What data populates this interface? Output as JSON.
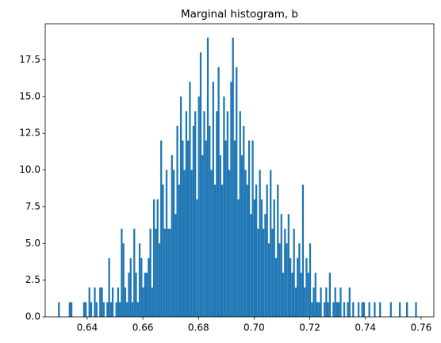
{
  "chart_data": {
    "type": "histogram",
    "title": "Marginal histogram, b",
    "color": "#1f77b4",
    "bins": [
      0.6295,
      0.630145,
      0.63079,
      0.631435,
      0.63208,
      0.632725,
      0.63337,
      0.634015,
      0.63466,
      0.635305,
      0.63595,
      0.636595,
      0.63724,
      0.637885,
      0.63853,
      0.639175,
      0.63982,
      0.640465,
      0.64111,
      0.641755,
      0.6424,
      0.643045,
      0.64369,
      0.644335,
      0.64498,
      0.645625,
      0.64627,
      0.646915,
      0.64756,
      0.648205,
      0.64885,
      0.649495,
      0.65014,
      0.650785,
      0.65143,
      0.652075,
      0.65272,
      0.653365,
      0.65401,
      0.654655,
      0.6553,
      0.655945,
      0.65659,
      0.657235,
      0.65788,
      0.658525,
      0.65917,
      0.659815,
      0.66046,
      0.661105,
      0.66175,
      0.662395,
      0.66304,
      0.663685,
      0.66433,
      0.664975,
      0.66562,
      0.666265,
      0.66691,
      0.667555,
      0.6682,
      0.668845,
      0.66949,
      0.670135,
      0.67078,
      0.671425,
      0.67207,
      0.672715,
      0.67336,
      0.674005,
      0.67465,
      0.675295,
      0.67594,
      0.676585,
      0.67723,
      0.677875,
      0.67852,
      0.679165,
      0.67981,
      0.680455,
      0.6811,
      0.681745,
      0.68239,
      0.683035,
      0.68368,
      0.684325,
      0.68497,
      0.685615,
      0.68626,
      0.686905,
      0.68755,
      0.688195,
      0.68884,
      0.689485,
      0.69013,
      0.690775,
      0.69142,
      0.692065,
      0.69271,
      0.693355,
      0.694,
      0.694645,
      0.69529,
      0.695935,
      0.69658,
      0.697225,
      0.69787,
      0.698515,
      0.69916,
      0.699805,
      0.70045,
      0.701095,
      0.70174,
      0.702385,
      0.70303,
      0.703675,
      0.70432,
      0.704965,
      0.70561,
      0.706255,
      0.7069,
      0.707545,
      0.70819,
      0.708835,
      0.70948,
      0.710125,
      0.71077,
      0.711415,
      0.71206,
      0.712705,
      0.71335,
      0.713995,
      0.71464,
      0.715285,
      0.71593,
      0.716575,
      0.71722,
      0.717865,
      0.71851,
      0.719155,
      0.7198,
      0.720445,
      0.72109,
      0.721735,
      0.72238,
      0.723025,
      0.72367,
      0.724315,
      0.72496,
      0.725605,
      0.72625,
      0.726895,
      0.72754,
      0.728185,
      0.72883,
      0.729475,
      0.73012,
      0.730765,
      0.73141,
      0.732055,
      0.7327,
      0.733345,
      0.73399,
      0.734635,
      0.73528,
      0.735925,
      0.73657,
      0.737215,
      0.73786,
      0.738505,
      0.73915,
      0.739795,
      0.74044,
      0.741085,
      0.74173,
      0.742375,
      0.74302,
      0.743665,
      0.74431,
      0.744955,
      0.7456,
      0.746245,
      0.74689,
      0.747535,
      0.74818,
      0.748825,
      0.74947,
      0.750115,
      0.75076,
      0.751405,
      0.75205,
      0.752695,
      0.75334,
      0.753985,
      0.75463,
      0.755275,
      0.75592,
      0.756565,
      0.75721,
      0.757855,
      0.7585
    ],
    "values": [
      1,
      0,
      0,
      0,
      0,
      0,
      1,
      1,
      0,
      0,
      0,
      0,
      0,
      0,
      1,
      1,
      0,
      2,
      1,
      0,
      2,
      1,
      0,
      2,
      2,
      1,
      0,
      1,
      4,
      1,
      2,
      0,
      1,
      2,
      1,
      6,
      5,
      2,
      1,
      3,
      4,
      1,
      6,
      3,
      1,
      5,
      4,
      2,
      3,
      3,
      4,
      6,
      2,
      8,
      6,
      8,
      5,
      12,
      9,
      6,
      10,
      6,
      6,
      11,
      10,
      7,
      13,
      9,
      15,
      12,
      10,
      14,
      12,
      16,
      10,
      13,
      14,
      8,
      15,
      18,
      11,
      14,
      12,
      19,
      13,
      10,
      16,
      9,
      14,
      17,
      11,
      9,
      15,
      12,
      14,
      10,
      16,
      19,
      12,
      17,
      8,
      14,
      11,
      13,
      10,
      9,
      12,
      7,
      12,
      8,
      9,
      6,
      10,
      8,
      6,
      7,
      9,
      5,
      10,
      6,
      8,
      4,
      9,
      5,
      7,
      3,
      6,
      5,
      7,
      4,
      3,
      6,
      2,
      4,
      5,
      3,
      9,
      2,
      4,
      3,
      5,
      1,
      2,
      3,
      1,
      1,
      2,
      0,
      1,
      2,
      1,
      3,
      0,
      1,
      2,
      1,
      1,
      2,
      0,
      1,
      0,
      1,
      2,
      0,
      1,
      0,
      0,
      1,
      0,
      1,
      1,
      0,
      0,
      1,
      0,
      0,
      1,
      0,
      0,
      1,
      0,
      0,
      0,
      0,
      0,
      1,
      0,
      0,
      0,
      0,
      1,
      0,
      0,
      0,
      1,
      0,
      0,
      0,
      0,
      1
    ],
    "xlim": [
      0.6249,
      0.7646
    ],
    "ylim": [
      0,
      19.95
    ],
    "xticks": [
      0.64,
      0.66,
      0.68,
      {
        "value": 0.7,
        "label": "0.70"
      },
      0.72,
      0.74,
      0.76
    ],
    "yticks": [
      {
        "value": 0,
        "label": "0.0"
      },
      2.5,
      {
        "value": 5,
        "label": "5.0"
      },
      7.5,
      {
        "value": 10,
        "label": "10.0"
      },
      12.5,
      {
        "value": 15,
        "label": "15.0"
      },
      17.5
    ]
  }
}
